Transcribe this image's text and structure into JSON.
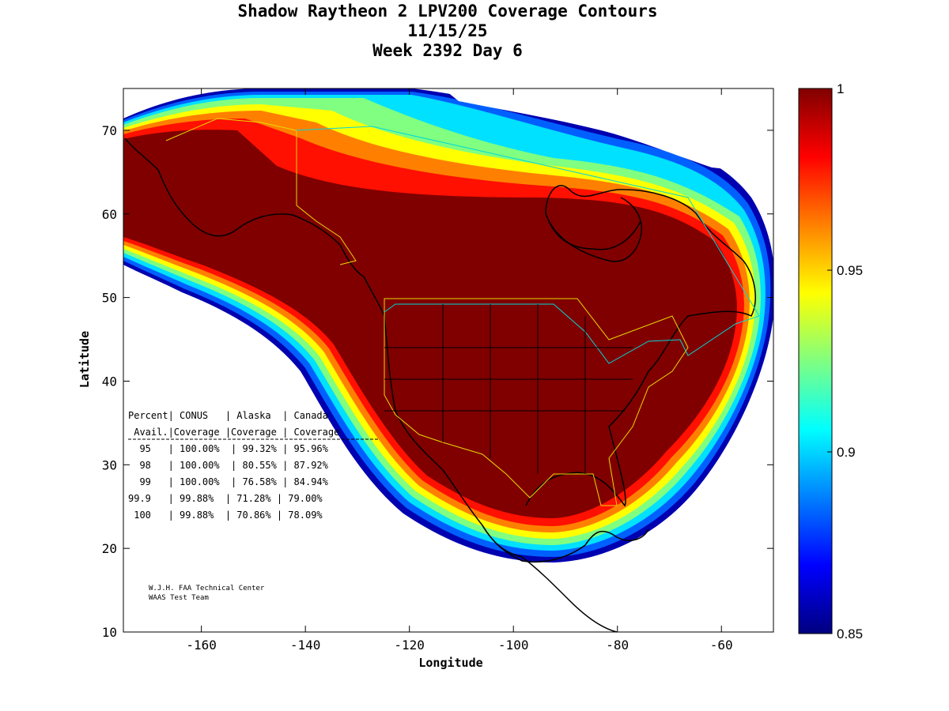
{
  "title": {
    "line1": "Shadow Raytheon 2 LPV200 Coverage Contours",
    "line2": "11/15/25",
    "line3": "Week 2392 Day 6"
  },
  "axes": {
    "xlabel": "Longitude",
    "ylabel": "Latitude",
    "xticks": [
      "-160",
      "-140",
      "-120",
      "-100",
      "-80",
      "-60"
    ],
    "yticks": [
      "10",
      "20",
      "30",
      "40",
      "50",
      "60",
      "70"
    ],
    "xlim": [
      -175,
      -50
    ],
    "ylim": [
      10,
      75
    ]
  },
  "colorbar": {
    "labels": [
      "1",
      "0.95",
      "0.9",
      "0.85"
    ],
    "range": [
      0.85,
      1.0
    ],
    "colors": [
      "#800000",
      "#ff0000",
      "#ff8000",
      "#ffff00",
      "#80ff80",
      "#00ffff",
      "#0080ff",
      "#0000ff",
      "#000080"
    ]
  },
  "table": {
    "header1": "Percent| CONUS   | Alaska  | Canada",
    "header2": " Avail.|Coverage |Coverage | Coverage",
    "rows": [
      "  95   | 100.00%  | 99.32% | 95.96%",
      "  98   | 100.00%  | 80.55% | 87.92%",
      "  99   | 100.00%  | 76.58% | 84.94%",
      "99.9   | 99.88%  | 71.28% | 79.00%",
      " 100   | 99.88%  | 70.86% | 78.09%"
    ]
  },
  "credit": {
    "line1": "W.J.H. FAA Technical Center",
    "line2": "WAAS Test Team"
  },
  "chart_data": {
    "type": "heatmap",
    "title": "Shadow Raytheon 2 LPV200 Coverage Contours",
    "xlabel": "Longitude",
    "ylabel": "Latitude",
    "xlim": [
      -175,
      -50
    ],
    "ylim": [
      10,
      75
    ],
    "colorbar_range": [
      0.85,
      1.0
    ],
    "coverage": {
      "columns": [
        "Percent Avail.",
        "CONUS Coverage",
        "Alaska Coverage",
        "Canada Coverage"
      ],
      "rows": [
        [
          "95",
          "100.00%",
          "99.32%",
          "95.96%"
        ],
        [
          "98",
          "100.00%",
          "80.55%",
          "87.92%"
        ],
        [
          "99",
          "100.00%",
          "76.58%",
          "84.94%"
        ],
        [
          "99.9",
          "99.88%",
          "71.28%",
          "79.00%"
        ],
        [
          "100",
          "99.88%",
          "70.86%",
          "78.09%"
        ]
      ]
    }
  }
}
